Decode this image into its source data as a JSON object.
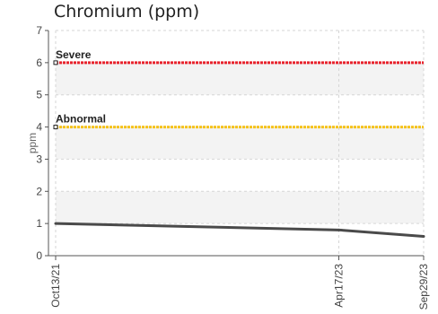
{
  "chart_data": {
    "type": "line",
    "title": "Chromium (ppm)",
    "xlabel": "",
    "ylabel": "ppm",
    "x": [
      "Oct13/21",
      "Apr17/23",
      "Sep29/23"
    ],
    "x_days": [
      0,
      551,
      716
    ],
    "ylim": [
      0,
      7
    ],
    "yticks": [
      0,
      1,
      2,
      3,
      4,
      5,
      6,
      7
    ],
    "grid": true,
    "series": [
      {
        "name": "",
        "values": [
          1.0,
          0.8,
          0.6
        ],
        "color": "#4a4a4a"
      }
    ],
    "thresholds": [
      {
        "label": "Severe",
        "value": 6,
        "color": "#e8212b"
      },
      {
        "label": "Abnormal",
        "value": 4,
        "color": "#f5c31c"
      }
    ]
  }
}
